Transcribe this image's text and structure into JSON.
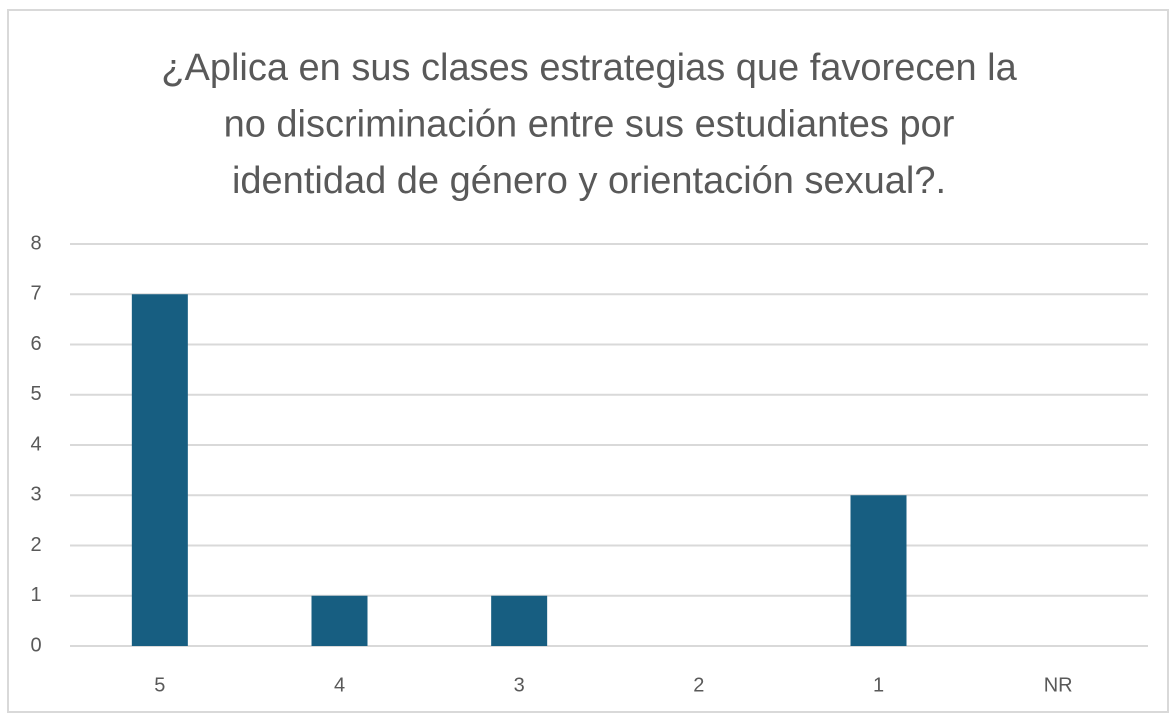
{
  "chart_data": {
    "type": "bar",
    "title": [
      "¿Aplica en sus clases estrategias que favorecen la",
      "no discriminación entre sus estudiantes por",
      "identidad de género y orientación sexual?."
    ],
    "categories": [
      "5",
      "4",
      "3",
      "2",
      "1",
      "NR"
    ],
    "values": [
      7,
      1,
      1,
      0,
      3,
      0
    ],
    "color": "#175e81",
    "ylim": [
      0,
      8
    ],
    "yticks": [
      0,
      1,
      2,
      3,
      4,
      5,
      6,
      7,
      8
    ],
    "grid": true
  }
}
